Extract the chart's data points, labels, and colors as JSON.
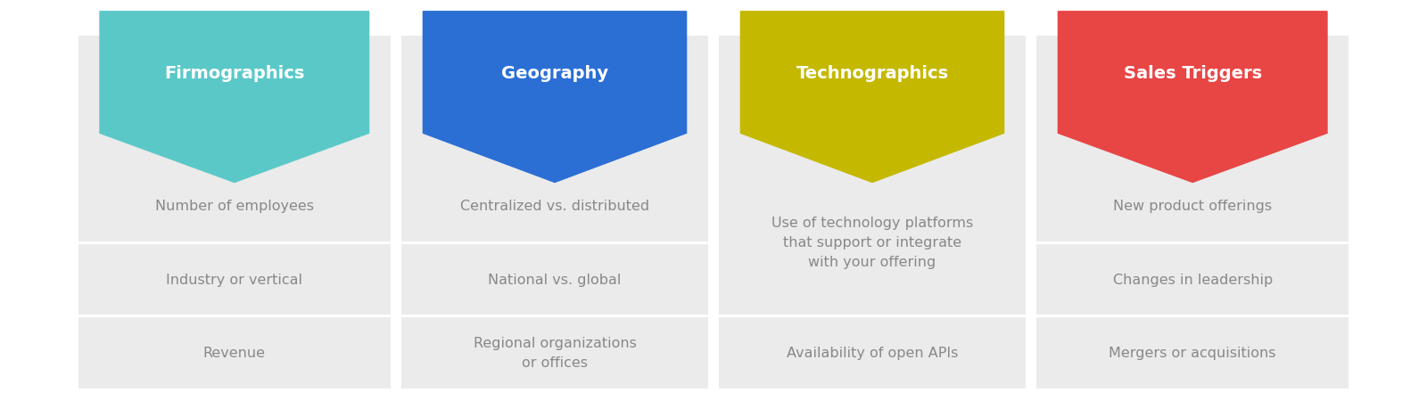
{
  "fig_background": "#ffffff",
  "panel_bg": "#ebebeb",
  "cell_bg": "#ebebeb",
  "cell_gap": "#ffffff",
  "header_text_color": "#ffffff",
  "row_text_color": "#888888",
  "header_fontsize": 14,
  "row_fontsize": 11.5,
  "columns": [
    {
      "header": "Firmographics",
      "header_color": "#5bc8c8",
      "rows": [
        "Number of employees",
        "Industry or vertical",
        "Revenue"
      ],
      "merged": null
    },
    {
      "header": "Geography",
      "header_color": "#2b6fd4",
      "rows": [
        "Centralized vs. distributed",
        "National vs. global",
        "Regional organizations\nor offices"
      ],
      "merged": null
    },
    {
      "header": "Technographics",
      "header_color": "#c4b800",
      "rows": [
        "Use of technology platforms\nthat support or integrate\nwith your offering",
        "",
        "Availability of open APIs"
      ],
      "merged": [
        0,
        1
      ]
    },
    {
      "header": "Sales Triggers",
      "header_color": "#e84545",
      "rows": [
        "New product offerings",
        "Changes in leadership",
        "Mergers or acquisitions"
      ],
      "merged": null
    }
  ]
}
